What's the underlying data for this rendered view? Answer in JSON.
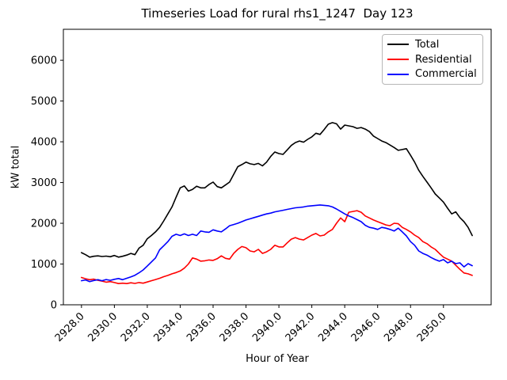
{
  "title": "Timeseries Load for rural rhs1_1247  Day 123",
  "figure_bg": "#ffffff",
  "chart_data": {
    "type": "line",
    "title": "Timeseries Load for rural rhs1_1247  Day 123",
    "xlabel": "Hour of Year",
    "ylabel": "kW total",
    "grid": false,
    "legend_position": "upper-right",
    "xlim": [
      2926.9,
      2952.9
    ],
    "ylim": [
      0,
      6760
    ],
    "x_ticks": [
      2928,
      2930,
      2932,
      2934,
      2936,
      2938,
      2940,
      2942,
      2944,
      2946,
      2948,
      2950
    ],
    "x_tick_labels": [
      "2928.0",
      "2930.0",
      "2932.0",
      "2934.0",
      "2936.0",
      "2938.0",
      "2940.0",
      "2942.0",
      "2944.0",
      "2946.0",
      "2948.0",
      "2950.0"
    ],
    "y_ticks": [
      0,
      1000,
      2000,
      3000,
      4000,
      5000,
      6000
    ],
    "y_tick_labels": [
      "0",
      "1000",
      "2000",
      "3000",
      "4000",
      "5000",
      "6000"
    ],
    "x": [
      2928.0,
      2928.25,
      2928.5,
      2928.75,
      2929.0,
      2929.25,
      2929.5,
      2929.75,
      2930.0,
      2930.25,
      2930.5,
      2930.75,
      2931.0,
      2931.25,
      2931.5,
      2931.75,
      2932.0,
      2932.25,
      2932.5,
      2932.75,
      2933.0,
      2933.25,
      2933.5,
      2933.75,
      2934.0,
      2934.25,
      2934.5,
      2934.75,
      2935.0,
      2935.25,
      2935.5,
      2935.75,
      2936.0,
      2936.25,
      2936.5,
      2936.75,
      2937.0,
      2937.25,
      2937.5,
      2937.75,
      2938.0,
      2938.25,
      2938.5,
      2938.75,
      2939.0,
      2939.25,
      2939.5,
      2939.75,
      2940.0,
      2940.25,
      2940.5,
      2940.75,
      2941.0,
      2941.25,
      2941.5,
      2941.75,
      2942.0,
      2942.25,
      2942.5,
      2942.75,
      2943.0,
      2943.25,
      2943.5,
      2943.75,
      2944.0,
      2944.25,
      2944.5,
      2944.75,
      2945.0,
      2945.25,
      2945.5,
      2945.75,
      2946.0,
      2946.25,
      2946.5,
      2946.75,
      2947.0,
      2947.25,
      2947.5,
      2947.75,
      2948.0,
      2948.25,
      2948.5,
      2948.75,
      2949.0,
      2949.25,
      2949.5,
      2949.75,
      2950.0,
      2950.25,
      2950.5,
      2950.75,
      2951.0,
      2951.25,
      2951.5,
      2951.75
    ],
    "series": [
      {
        "name": "Total",
        "color": "#000000",
        "values": [
          1280,
          1230,
          1170,
          1190,
          1200,
          1185,
          1195,
          1180,
          1210,
          1170,
          1190,
          1220,
          1260,
          1230,
          1390,
          1460,
          1620,
          1700,
          1790,
          1900,
          2060,
          2230,
          2400,
          2640,
          2870,
          2915,
          2790,
          2830,
          2910,
          2870,
          2870,
          2950,
          3010,
          2900,
          2870,
          2940,
          3010,
          3200,
          3390,
          3440,
          3500,
          3460,
          3440,
          3470,
          3410,
          3500,
          3640,
          3750,
          3710,
          3690,
          3800,
          3910,
          3980,
          4020,
          3990,
          4060,
          4120,
          4210,
          4180,
          4300,
          4430,
          4470,
          4440,
          4310,
          4410,
          4390,
          4370,
          4330,
          4350,
          4310,
          4250,
          4140,
          4080,
          4020,
          3980,
          3920,
          3860,
          3790,
          3810,
          3830,
          3670,
          3500,
          3300,
          3150,
          3010,
          2870,
          2720,
          2620,
          2520,
          2370,
          2230,
          2280,
          2140,
          2040,
          1900,
          1700
        ]
      },
      {
        "name": "Residential",
        "color": "#ff0000",
        "values": [
          670,
          640,
          615,
          630,
          600,
          580,
          555,
          570,
          545,
          520,
          530,
          520,
          540,
          525,
          545,
          530,
          560,
          590,
          620,
          650,
          690,
          720,
          760,
          790,
          830,
          900,
          1000,
          1150,
          1120,
          1070,
          1080,
          1100,
          1090,
          1130,
          1200,
          1140,
          1120,
          1260,
          1360,
          1430,
          1400,
          1320,
          1300,
          1360,
          1260,
          1300,
          1360,
          1460,
          1420,
          1420,
          1520,
          1610,
          1650,
          1610,
          1590,
          1650,
          1710,
          1750,
          1690,
          1710,
          1790,
          1850,
          2000,
          2130,
          2040,
          2270,
          2290,
          2310,
          2270,
          2180,
          2130,
          2080,
          2040,
          2000,
          1960,
          1940,
          2000,
          1990,
          1900,
          1850,
          1790,
          1710,
          1650,
          1550,
          1500,
          1420,
          1360,
          1260,
          1170,
          1120,
          1070,
          970,
          870,
          780,
          760,
          720
        ]
      },
      {
        "name": "Commercial",
        "color": "#0000ff",
        "values": [
          590,
          610,
          570,
          595,
          615,
          590,
          620,
          600,
          625,
          645,
          615,
          650,
          685,
          725,
          785,
          855,
          950,
          1050,
          1150,
          1350,
          1450,
          1550,
          1680,
          1730,
          1700,
          1740,
          1700,
          1730,
          1700,
          1810,
          1790,
          1780,
          1840,
          1810,
          1790,
          1860,
          1940,
          1970,
          2000,
          2040,
          2080,
          2110,
          2140,
          2170,
          2200,
          2230,
          2250,
          2280,
          2300,
          2320,
          2340,
          2360,
          2380,
          2390,
          2400,
          2420,
          2430,
          2440,
          2450,
          2440,
          2430,
          2400,
          2350,
          2290,
          2230,
          2180,
          2140,
          2090,
          2040,
          1950,
          1900,
          1880,
          1850,
          1900,
          1880,
          1850,
          1810,
          1880,
          1790,
          1690,
          1550,
          1460,
          1320,
          1260,
          1220,
          1160,
          1110,
          1070,
          1110,
          1030,
          1070,
          1010,
          1030,
          930,
          1010,
          960
        ]
      }
    ]
  },
  "legend": {
    "entries": [
      {
        "label": "Total",
        "color": "#000000"
      },
      {
        "label": "Residential",
        "color": "#ff0000"
      },
      {
        "label": "Commercial",
        "color": "#0000ff"
      }
    ]
  }
}
